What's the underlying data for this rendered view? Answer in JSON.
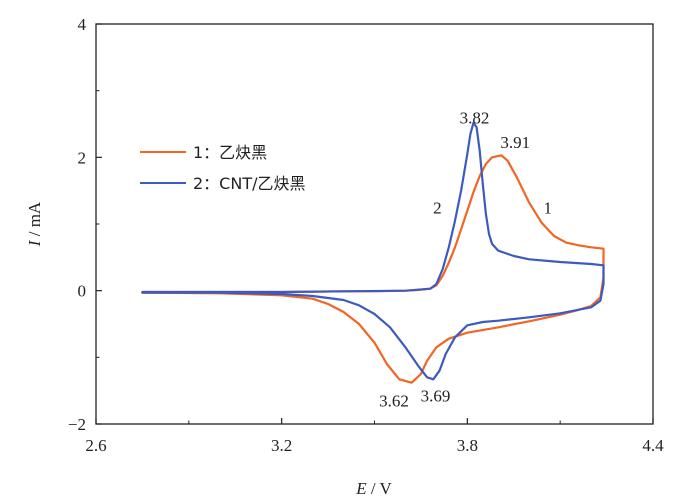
{
  "chart_data": {
    "type": "line",
    "title": "",
    "xlabel_var": "E",
    "xlabel_unit": " / V",
    "ylabel_var": "I",
    "ylabel_unit": " / mA",
    "xlim": [
      2.6,
      4.4
    ],
    "ylim": [
      -2,
      4
    ],
    "xticks": [
      2.6,
      3.2,
      3.8,
      4.4
    ],
    "xtick_labels": [
      "2.6",
      "3.2",
      "3.8",
      "4.4"
    ],
    "yticks": [
      -2,
      0,
      2,
      4
    ],
    "ytick_labels": [
      "−2",
      "0",
      "2",
      "4"
    ],
    "grid": false,
    "legend_position": "upper-left",
    "series": [
      {
        "name": "1：乙炔黑",
        "color": "#f26522",
        "forward": [
          [
            2.75,
            -0.02
          ],
          [
            3.0,
            -0.02
          ],
          [
            3.2,
            -0.02
          ],
          [
            3.4,
            -0.01
          ],
          [
            3.5,
            -0.01
          ],
          [
            3.6,
            0.0
          ],
          [
            3.64,
            0.01
          ],
          [
            3.68,
            0.03
          ],
          [
            3.7,
            0.08
          ],
          [
            3.72,
            0.22
          ],
          [
            3.74,
            0.42
          ],
          [
            3.76,
            0.65
          ],
          [
            3.78,
            0.92
          ],
          [
            3.8,
            1.2
          ],
          [
            3.82,
            1.48
          ],
          [
            3.84,
            1.72
          ],
          [
            3.86,
            1.9
          ],
          [
            3.88,
            2.0
          ],
          [
            3.91,
            2.03
          ],
          [
            3.93,
            1.95
          ],
          [
            3.96,
            1.7
          ],
          [
            4.0,
            1.32
          ],
          [
            4.04,
            1.02
          ],
          [
            4.08,
            0.82
          ],
          [
            4.12,
            0.72
          ],
          [
            4.16,
            0.68
          ],
          [
            4.2,
            0.65
          ],
          [
            4.24,
            0.63
          ]
        ],
        "reverse": [
          [
            4.24,
            0.63
          ],
          [
            4.24,
            0.2
          ],
          [
            4.23,
            -0.1
          ],
          [
            4.2,
            -0.23
          ],
          [
            4.15,
            -0.3
          ],
          [
            4.1,
            -0.36
          ],
          [
            4.0,
            -0.46
          ],
          [
            3.9,
            -0.55
          ],
          [
            3.8,
            -0.63
          ],
          [
            3.74,
            -0.72
          ],
          [
            3.7,
            -0.85
          ],
          [
            3.67,
            -1.05
          ],
          [
            3.65,
            -1.25
          ],
          [
            3.62,
            -1.38
          ],
          [
            3.58,
            -1.33
          ],
          [
            3.54,
            -1.1
          ],
          [
            3.5,
            -0.78
          ],
          [
            3.45,
            -0.5
          ],
          [
            3.4,
            -0.32
          ],
          [
            3.35,
            -0.2
          ],
          [
            3.3,
            -0.12
          ],
          [
            3.2,
            -0.07
          ],
          [
            3.0,
            -0.04
          ],
          [
            2.75,
            -0.03
          ]
        ]
      },
      {
        "name": "2：CNT/乙炔黑",
        "color": "#3d5bbf",
        "forward": [
          [
            2.75,
            -0.02
          ],
          [
            3.0,
            -0.02
          ],
          [
            3.2,
            -0.02
          ],
          [
            3.4,
            -0.01
          ],
          [
            3.6,
            0.0
          ],
          [
            3.68,
            0.03
          ],
          [
            3.7,
            0.1
          ],
          [
            3.72,
            0.32
          ],
          [
            3.74,
            0.65
          ],
          [
            3.76,
            1.05
          ],
          [
            3.78,
            1.5
          ],
          [
            3.8,
            2.05
          ],
          [
            3.81,
            2.35
          ],
          [
            3.82,
            2.52
          ],
          [
            3.83,
            2.45
          ],
          [
            3.84,
            2.1
          ],
          [
            3.85,
            1.6
          ],
          [
            3.86,
            1.15
          ],
          [
            3.87,
            0.85
          ],
          [
            3.88,
            0.7
          ],
          [
            3.9,
            0.6
          ],
          [
            3.95,
            0.52
          ],
          [
            4.0,
            0.47
          ],
          [
            4.1,
            0.43
          ],
          [
            4.2,
            0.4
          ],
          [
            4.24,
            0.38
          ]
        ],
        "reverse": [
          [
            4.24,
            0.38
          ],
          [
            4.24,
            0.1
          ],
          [
            4.23,
            -0.15
          ],
          [
            4.2,
            -0.25
          ],
          [
            4.1,
            -0.34
          ],
          [
            4.0,
            -0.4
          ],
          [
            3.9,
            -0.45
          ],
          [
            3.85,
            -0.47
          ],
          [
            3.8,
            -0.52
          ],
          [
            3.76,
            -0.7
          ],
          [
            3.73,
            -0.95
          ],
          [
            3.71,
            -1.2
          ],
          [
            3.69,
            -1.33
          ],
          [
            3.67,
            -1.3
          ],
          [
            3.64,
            -1.12
          ],
          [
            3.6,
            -0.85
          ],
          [
            3.55,
            -0.55
          ],
          [
            3.5,
            -0.35
          ],
          [
            3.45,
            -0.22
          ],
          [
            3.4,
            -0.14
          ],
          [
            3.3,
            -0.08
          ],
          [
            3.2,
            -0.05
          ],
          [
            3.0,
            -0.03
          ],
          [
            2.75,
            -0.03
          ]
        ]
      }
    ],
    "annotations": [
      {
        "text": "3.82",
        "x": 3.823,
        "y": 2.6
      },
      {
        "text": "3.91",
        "x": 3.955,
        "y": 2.23
      },
      {
        "text": "1",
        "x": 4.06,
        "y": 1.25
      },
      {
        "text": "2",
        "x": 3.703,
        "y": 1.25
      },
      {
        "text": "3.62",
        "x": 3.563,
        "y": -1.65
      },
      {
        "text": "3.69",
        "x": 3.697,
        "y": -1.57
      }
    ]
  }
}
